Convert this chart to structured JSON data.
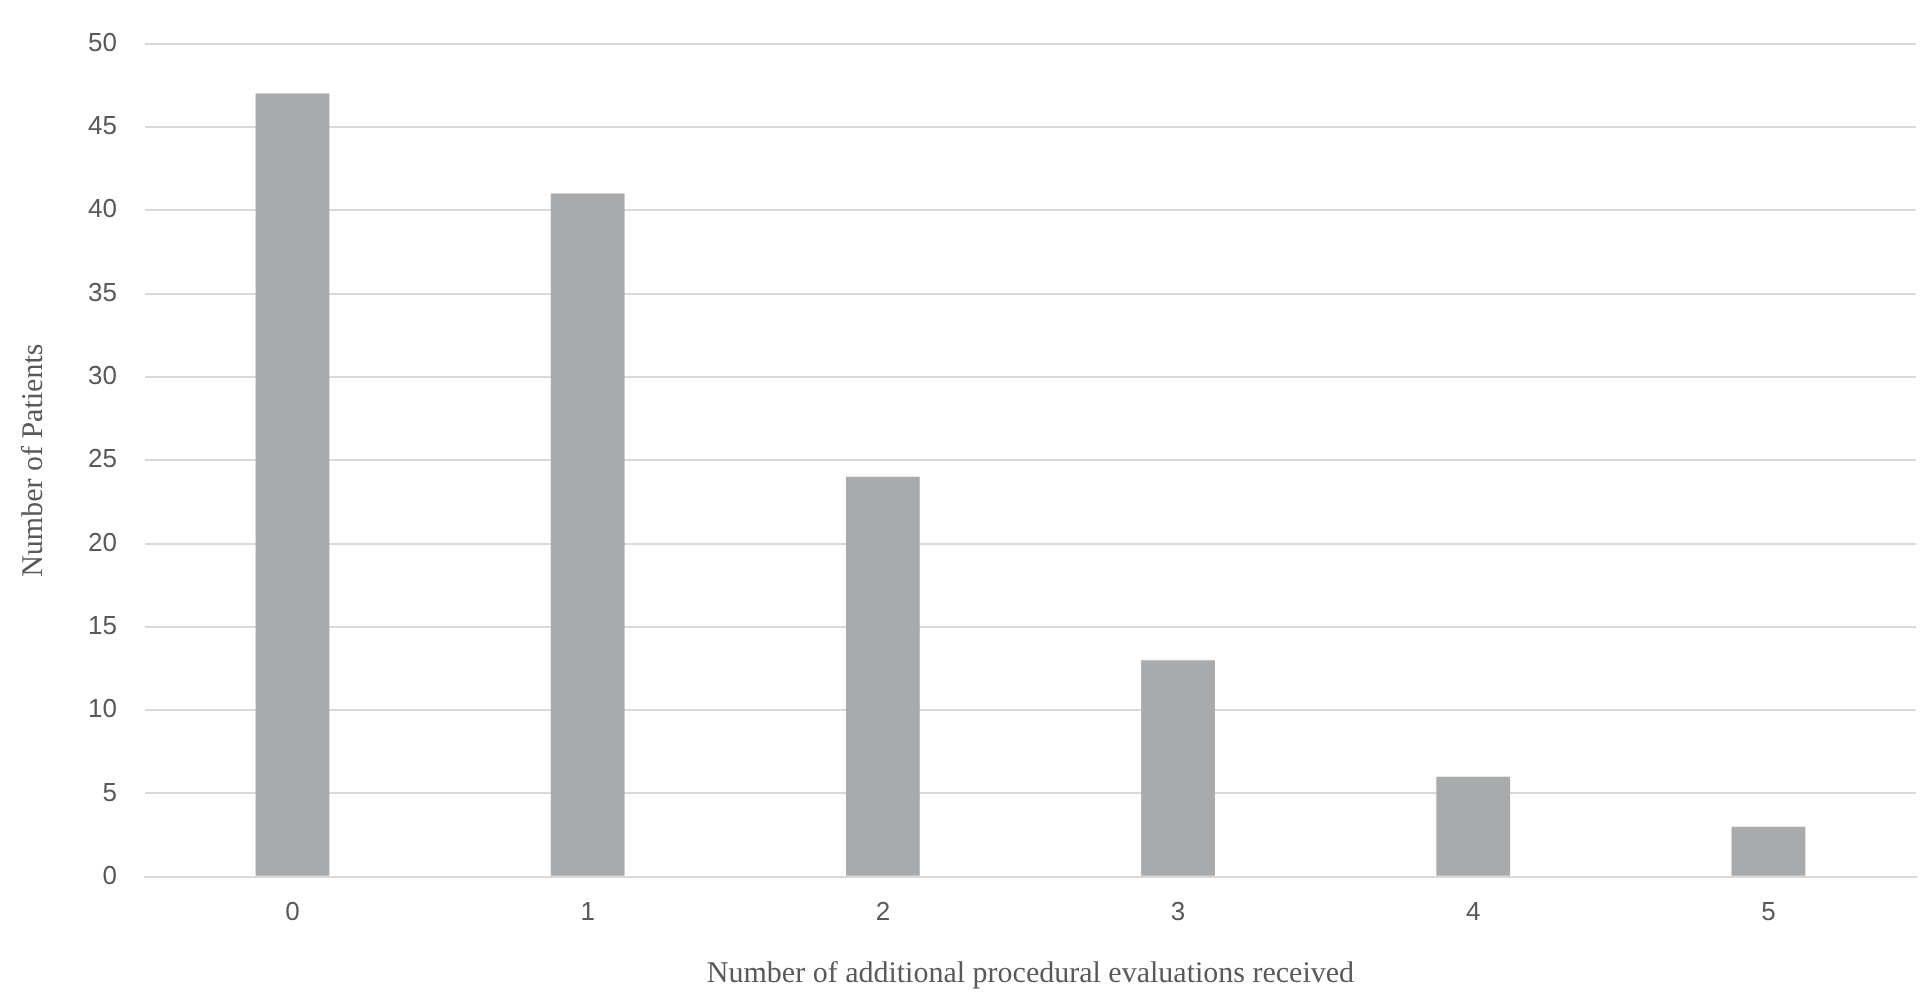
{
  "chart_data": {
    "type": "bar",
    "xlabel": "Number of additional procedural evaluations received",
    "ylabel": "Number of Patients",
    "categories": [
      "0",
      "1",
      "2",
      "3",
      "4",
      "5"
    ],
    "values": [
      47,
      41,
      24,
      13,
      6,
      3
    ],
    "color": "#a9aaac",
    "ylim": [
      0,
      50
    ],
    "yticks": [
      0,
      5,
      10,
      15,
      20,
      25,
      30,
      35,
      40,
      45,
      50
    ],
    "grid": "y",
    "legend": false
  }
}
